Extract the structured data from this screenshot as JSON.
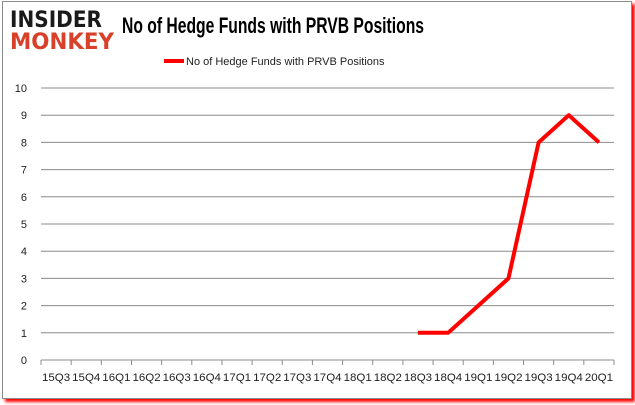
{
  "logo": {
    "line1": "INSIDER",
    "line2": "MONKEY"
  },
  "colors": {
    "series": "#ff0000",
    "grid": "#8c8c8c",
    "logo_dark": "#1a1a1a",
    "logo_red": "#d9402a"
  },
  "chart_data": {
    "type": "line",
    "title": "No of Hedge Funds with PRVB Positions",
    "xlabel": "",
    "ylabel": "",
    "ylim": [
      0,
      10
    ],
    "yticks": [
      "0",
      "1",
      "2",
      "3",
      "4",
      "5",
      "6",
      "7",
      "8",
      "9",
      "10"
    ],
    "grid": true,
    "legend_position": "top",
    "categories": [
      "15Q3",
      "15Q4",
      "16Q1",
      "16Q2",
      "16Q3",
      "16Q4",
      "17Q1",
      "17Q2",
      "17Q3",
      "17Q4",
      "18Q1",
      "18Q2",
      "18Q3",
      "18Q4",
      "19Q1",
      "19Q2",
      "19Q3",
      "19Q4",
      "20Q1"
    ],
    "series": [
      {
        "name": "No of Hedge Funds with PRVB Positions",
        "values": [
          null,
          null,
          null,
          null,
          null,
          null,
          null,
          null,
          null,
          null,
          null,
          null,
          1,
          1,
          2,
          3,
          8,
          9,
          8
        ]
      }
    ]
  }
}
